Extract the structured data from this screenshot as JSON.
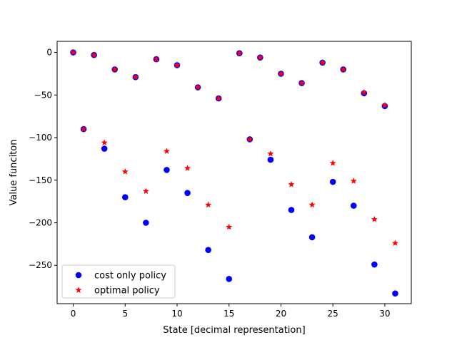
{
  "chart_data": {
    "type": "scatter",
    "xlabel": "State [decimal representation]",
    "ylabel": "Value funciton",
    "xlim": [
      -1.55,
      32.55
    ],
    "ylim": [
      -295,
      13
    ],
    "xticks": [
      0,
      5,
      10,
      15,
      20,
      25,
      30
    ],
    "yticks": [
      0,
      -50,
      -100,
      -150,
      -200,
      -250
    ],
    "grid": false,
    "legend_position": "lower-left",
    "series": [
      {
        "name": "cost only policy",
        "marker": "circle",
        "color": "#0000ff",
        "x": [
          0,
          1,
          2,
          3,
          4,
          5,
          6,
          7,
          8,
          9,
          10,
          11,
          12,
          13,
          14,
          15,
          16,
          17,
          18,
          19,
          20,
          21,
          22,
          23,
          24,
          25,
          26,
          27,
          28,
          29,
          30,
          31
        ],
        "y": [
          0,
          -90,
          -3,
          -113,
          -20,
          -170,
          -29,
          -200,
          -8,
          -138,
          -15,
          -165,
          -41,
          -232,
          -54,
          -266,
          -1,
          -102,
          -6,
          -126,
          -25,
          -185,
          -36,
          -217,
          -12,
          -152,
          -20,
          -180,
          -48,
          -249,
          -63,
          -283
        ]
      },
      {
        "name": "optimal policy",
        "marker": "star",
        "color": "#ff0000",
        "x": [
          0,
          1,
          2,
          3,
          4,
          5,
          6,
          7,
          8,
          9,
          10,
          11,
          12,
          13,
          14,
          15,
          16,
          17,
          18,
          19,
          20,
          21,
          22,
          23,
          24,
          25,
          26,
          27,
          28,
          29,
          30,
          31
        ],
        "y": [
          0,
          -90,
          -3,
          -106,
          -20,
          -140,
          -29,
          -163,
          -8,
          -116,
          -15,
          -136,
          -41,
          -179,
          -54,
          -205,
          -1,
          -102,
          -6,
          -119,
          -25,
          -155,
          -36,
          -179,
          -12,
          -130,
          -20,
          -151,
          -47,
          -196,
          -62,
          -224
        ]
      }
    ]
  }
}
